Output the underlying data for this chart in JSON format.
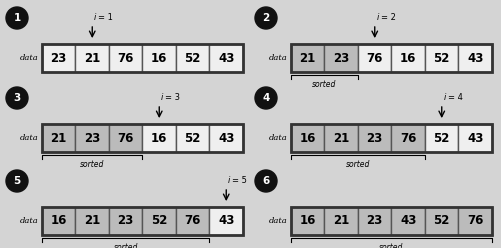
{
  "background_color": "#d4d4d4",
  "panels": [
    {
      "num": "1",
      "col": 0,
      "row": 0,
      "values": [
        23,
        21,
        76,
        16,
        52,
        43
      ],
      "shaded": [],
      "arrow_cell": 1,
      "arrow_label": "i = 1",
      "sorted_span": null
    },
    {
      "num": "2",
      "col": 1,
      "row": 0,
      "values": [
        21,
        23,
        76,
        16,
        52,
        43
      ],
      "shaded": [
        0,
        1
      ],
      "arrow_cell": 2,
      "arrow_label": "i = 2",
      "sorted_span": [
        0,
        1
      ]
    },
    {
      "num": "3",
      "col": 0,
      "row": 1,
      "values": [
        21,
        23,
        76,
        16,
        52,
        43
      ],
      "shaded": [
        0,
        1,
        2
      ],
      "arrow_cell": 3,
      "arrow_label": "i = 3",
      "sorted_span": [
        0,
        2
      ]
    },
    {
      "num": "4",
      "col": 1,
      "row": 1,
      "values": [
        16,
        21,
        23,
        76,
        52,
        43
      ],
      "shaded": [
        0,
        1,
        2,
        3
      ],
      "arrow_cell": 4,
      "arrow_label": "i = 4",
      "sorted_span": [
        0,
        3
      ]
    },
    {
      "num": "5",
      "col": 0,
      "row": 2,
      "values": [
        16,
        21,
        23,
        52,
        76,
        43
      ],
      "shaded": [
        0,
        1,
        2,
        3,
        4
      ],
      "arrow_cell": 5,
      "arrow_label": "i = 5",
      "sorted_span": [
        0,
        4
      ]
    },
    {
      "num": "6",
      "col": 1,
      "row": 2,
      "values": [
        16,
        21,
        23,
        43,
        52,
        76
      ],
      "shaded": [
        0,
        1,
        2,
        3,
        4,
        5
      ],
      "arrow_cell": null,
      "arrow_label": null,
      "sorted_span": [
        0,
        5
      ]
    }
  ],
  "shaded_color": "#bbbbbb",
  "white_color": "#efefef",
  "cell_value_fontsize": 8.5,
  "data_label_fontsize": 6.0,
  "sorted_label_fontsize": 5.5,
  "arrow_label_fontsize": 6.0,
  "circle_fontsize": 7.5
}
